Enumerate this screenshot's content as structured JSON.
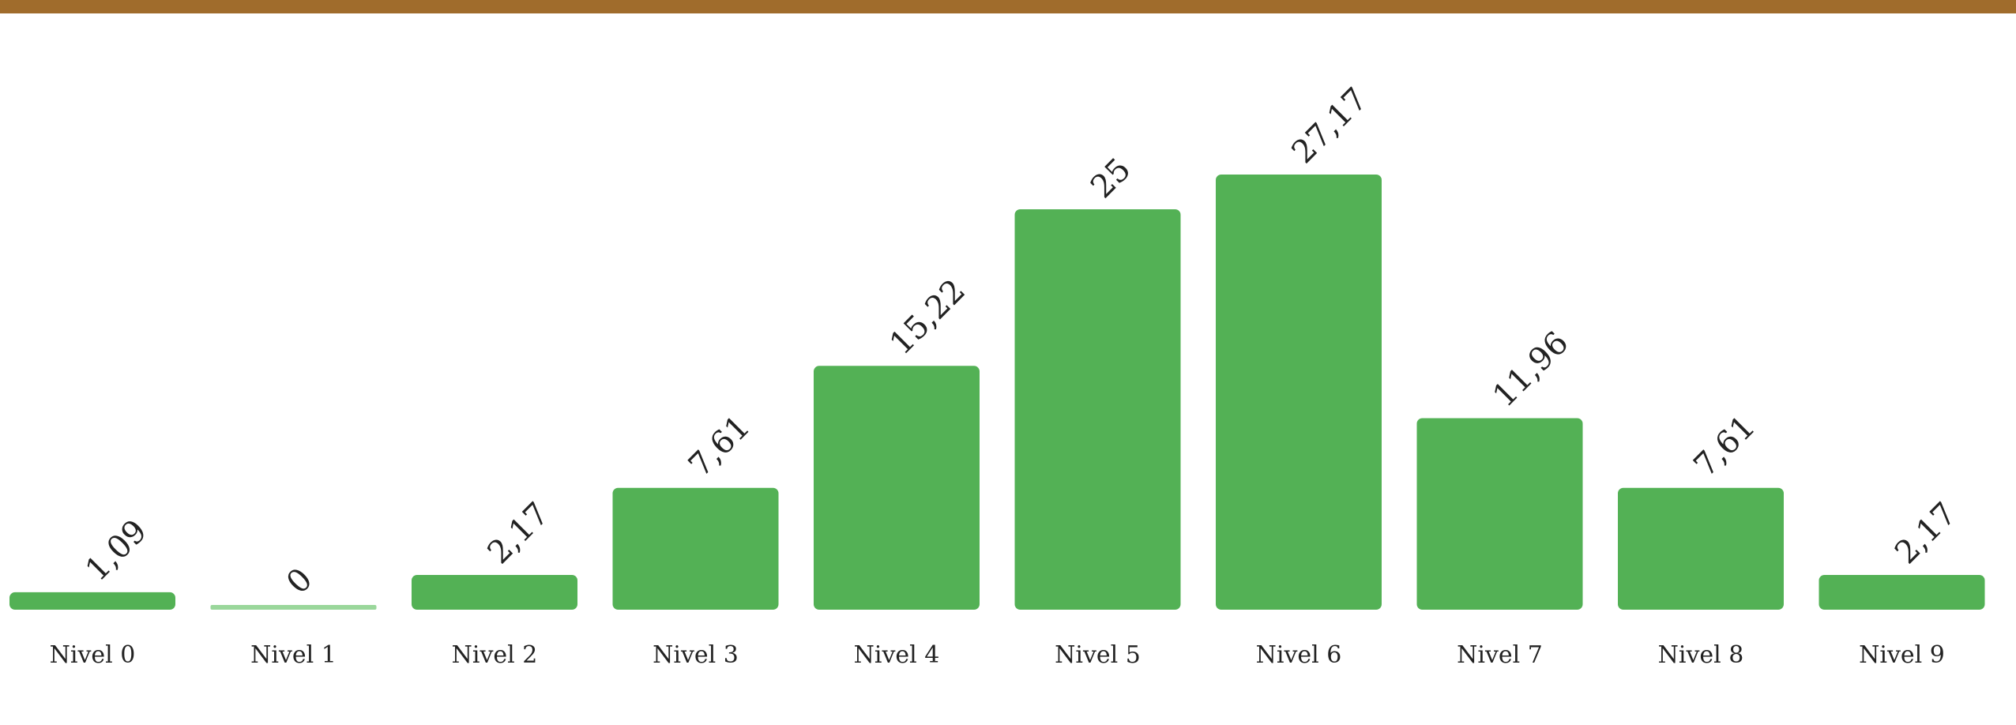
{
  "theme": {
    "top_bar_color": "#a06c2c",
    "bar_color": "#53b155",
    "zero_bar_color": "#9ad79b",
    "text_color": "#222222"
  },
  "chart_data": {
    "type": "bar",
    "title": "",
    "xlabel": "",
    "ylabel": "",
    "categories": [
      "Nivel 0",
      "Nivel 1",
      "Nivel 2",
      "Nivel 3",
      "Nivel 4",
      "Nivel 5",
      "Nivel 6",
      "Nivel 7",
      "Nivel 8",
      "Nivel 9"
    ],
    "values": [
      1.09,
      0,
      2.17,
      7.61,
      15.22,
      25,
      27.17,
      11.96,
      7.61,
      2.17
    ],
    "value_labels": [
      "1,09",
      "0",
      "2,17",
      "7,61",
      "15,22",
      "25",
      "27,17",
      "11,96",
      "7,61",
      "2,17"
    ],
    "ylim": [
      0,
      27.17
    ],
    "grid": false,
    "legend": "none",
    "axes_visible": false,
    "value_labels_rotated": true
  }
}
